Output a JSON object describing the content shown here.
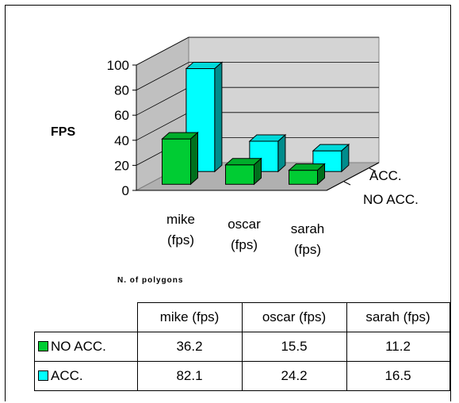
{
  "chart_data": {
    "type": "bar",
    "title": "",
    "ylabel": "FPS",
    "xlabel": "N. of polygons",
    "ylim": [
      0,
      100
    ],
    "yticks": [
      0,
      20,
      40,
      60,
      80,
      100
    ],
    "categories": [
      "mike (fps)",
      "oscar (fps)",
      "sarah (fps)"
    ],
    "category_lines": [
      [
        "mike",
        "(fps)"
      ],
      [
        "oscar",
        "(fps)"
      ],
      [
        "sarah",
        "(fps)"
      ]
    ],
    "series": [
      {
        "name": "NO ACC.",
        "values": [
          36.2,
          15.5,
          11.2
        ],
        "color": "#00cc33"
      },
      {
        "name": "ACC.",
        "values": [
          82.1,
          24.2,
          16.5
        ],
        "color": "#00ffff"
      }
    ],
    "depth_labels": [
      "NO ACC.",
      "ACC."
    ],
    "grid": true,
    "style": "3d-column"
  },
  "table": {
    "headers": [
      "mike (fps)",
      "oscar (fps)",
      "sarah (fps)"
    ],
    "rows": [
      {
        "label": "NO ACC.",
        "color": "#00cc33",
        "values": [
          "36.2",
          "15.5",
          "11.2"
        ]
      },
      {
        "label": "ACC.",
        "color": "#00ffff",
        "values": [
          "82.1",
          "24.2",
          "16.5"
        ]
      }
    ]
  }
}
